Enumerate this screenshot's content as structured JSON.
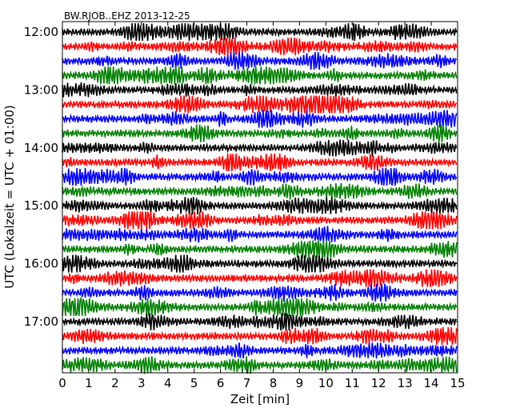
{
  "chart_data": {
    "type": "line",
    "title": "BW.RJOB..EHZ 2013-12-25",
    "xlabel": "Zeit  [min]",
    "ylabel": "UTC (Lokalzeit = UTC + 01:00)",
    "xlim": [
      0,
      15
    ],
    "x_ticks": [
      "0",
      "1",
      "2",
      "3",
      "4",
      "5",
      "6",
      "7",
      "8",
      "9",
      "10",
      "11",
      "12",
      "13",
      "14",
      "15"
    ],
    "y_ticks": [
      "12:00",
      "13:00",
      "14:00",
      "15:00",
      "16:00",
      "17:00"
    ],
    "grid": false,
    "trace_colors": [
      "#000000",
      "#ff0000",
      "#0000ff",
      "#008000"
    ],
    "trace_count": 24,
    "trace_interval_minutes": 15,
    "start_time": "12:00"
  }
}
